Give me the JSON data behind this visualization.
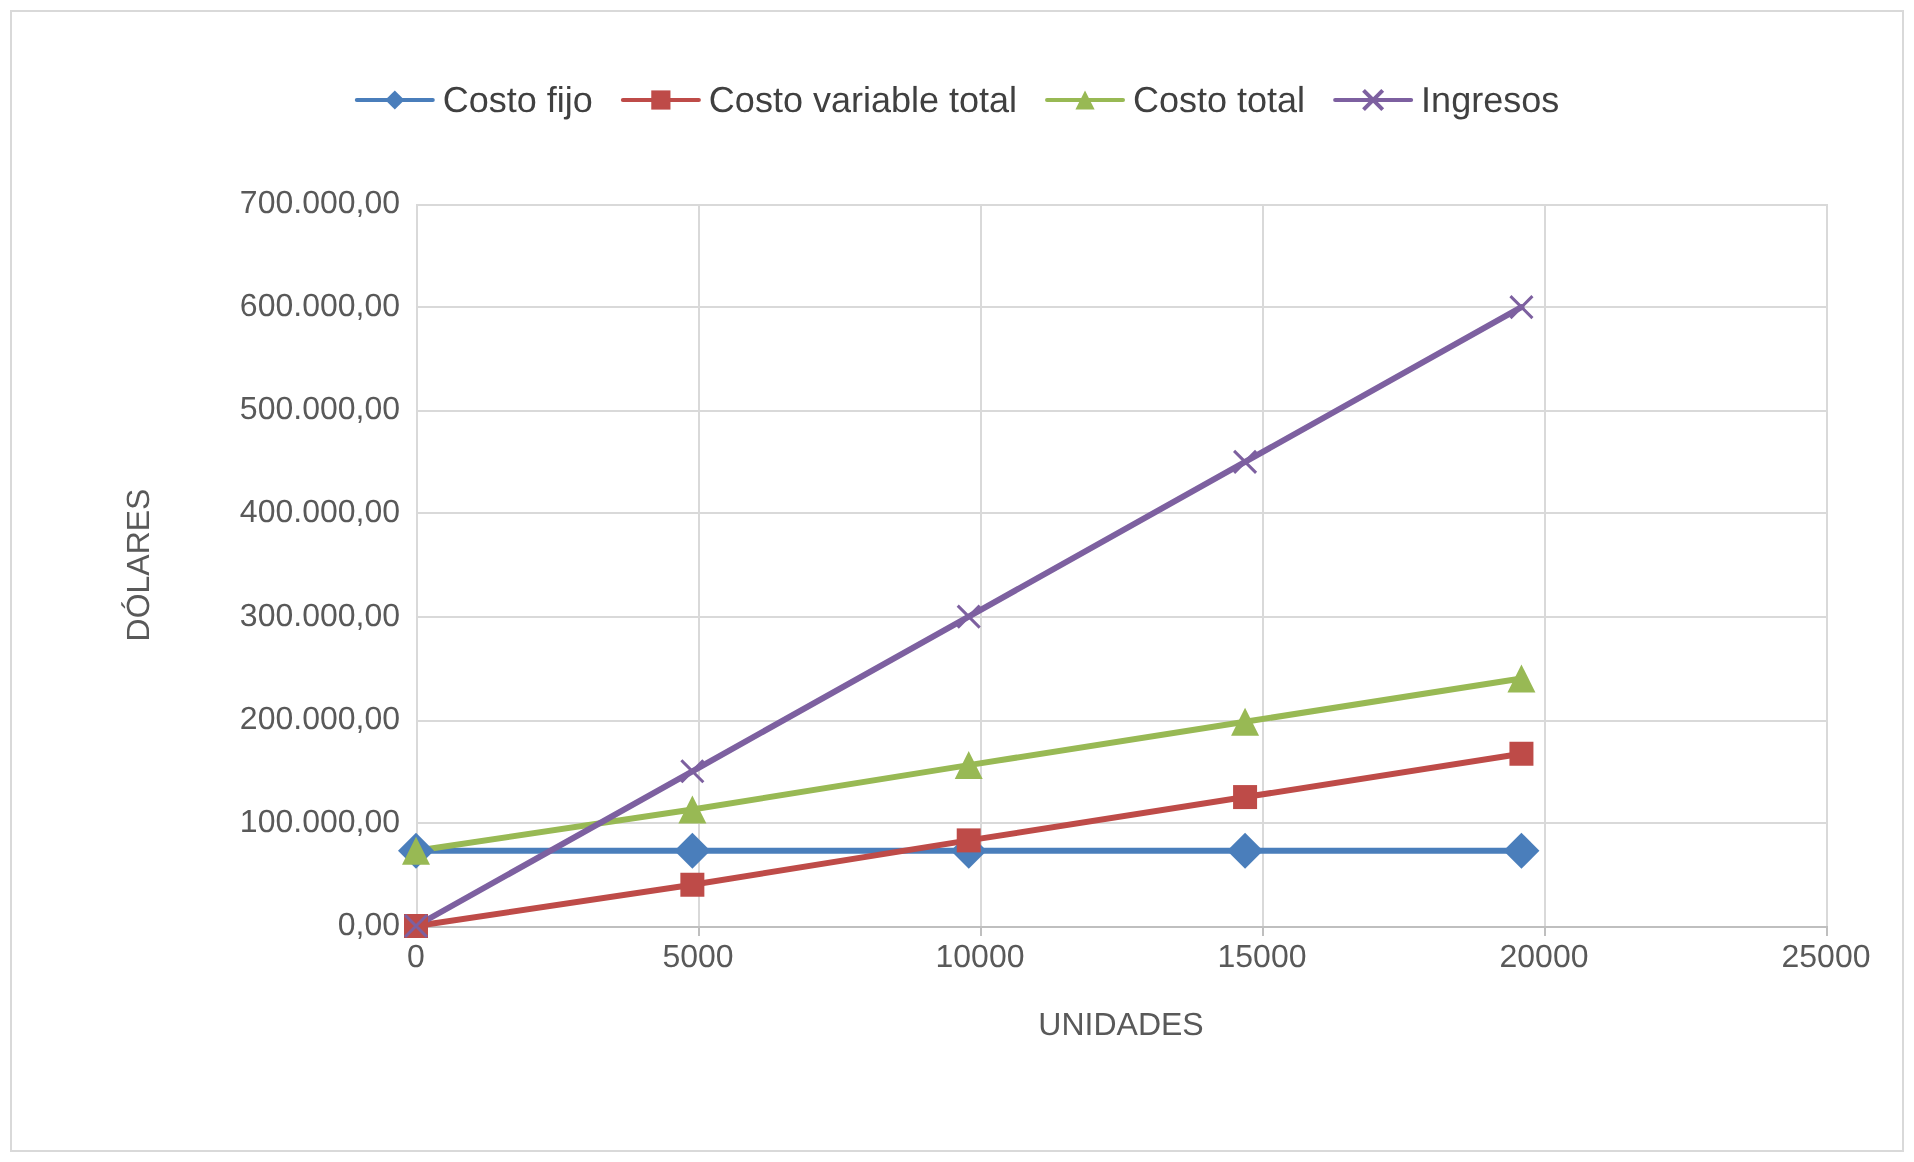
{
  "chart_data": {
    "type": "line",
    "xlabel": "UNIDADES",
    "ylabel": "DÓLARES",
    "xlim": [
      0,
      25000
    ],
    "xticks": [
      0,
      5000,
      10000,
      15000,
      20000,
      25000
    ],
    "ylim": [
      0,
      700000
    ],
    "yticks": [
      {
        "value": 0,
        "label": "0,00"
      },
      {
        "value": 100000,
        "label": "100.000,00"
      },
      {
        "value": 200000,
        "label": "200.000,00"
      },
      {
        "value": 300000,
        "label": "300.000,00"
      },
      {
        "value": 400000,
        "label": "400.000,00"
      },
      {
        "value": 500000,
        "label": "500.000,00"
      },
      {
        "value": 600000,
        "label": "600.000,00"
      },
      {
        "value": 700000,
        "label": "700.000,00"
      }
    ],
    "x": [
      0,
      4900,
      9800,
      14700,
      19600
    ],
    "series": [
      {
        "name": "Costo fijo",
        "color": "#4a7ebb",
        "marker": "diamond",
        "values": [
          73000,
          73000,
          73000,
          73000,
          73000
        ]
      },
      {
        "name": "Costo variable total",
        "color": "#be4b48",
        "marker": "square",
        "values": [
          0,
          40000,
          83000,
          125000,
          167000
        ]
      },
      {
        "name": "Costo total",
        "color": "#98b954",
        "marker": "triangle",
        "values": [
          73000,
          113000,
          156000,
          198000,
          240000
        ]
      },
      {
        "name": "Ingresos",
        "color": "#7d60a0",
        "marker": "cross",
        "values": [
          0,
          150000,
          300000,
          450000,
          600000
        ]
      }
    ],
    "grid": true,
    "legend": "top",
    "line_style": "solid"
  }
}
